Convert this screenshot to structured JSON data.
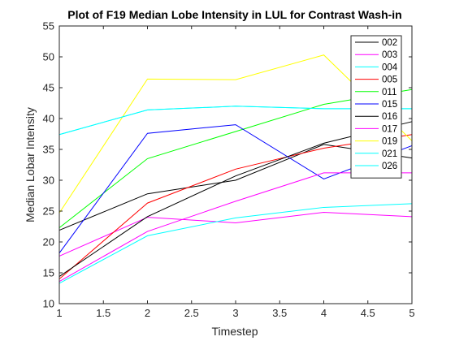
{
  "chart_data": {
    "type": "line",
    "title": "Plot of F19 Median Lobe Intensity in LUL for Contrast Wash-in",
    "xlabel": "Timestep",
    "ylabel": "Median Lobar Intensity",
    "xlim": [
      1,
      5
    ],
    "ylim": [
      10,
      55
    ],
    "xticks": [
      1,
      1.5,
      2,
      2.5,
      3,
      3.5,
      4,
      4.5,
      5
    ],
    "xtick_labels": [
      "1",
      "1.5",
      "2",
      "2.5",
      "3",
      "3.5",
      "4",
      "4.5",
      "5"
    ],
    "yticks": [
      10,
      15,
      20,
      25,
      30,
      35,
      40,
      45,
      50,
      55
    ],
    "ytick_labels": [
      "10",
      "15",
      "20",
      "25",
      "30",
      "35",
      "40",
      "45",
      "50",
      "55"
    ],
    "grid": false,
    "legend_position": "top-right",
    "x": [
      1,
      2,
      3,
      4,
      5
    ],
    "series": [
      {
        "name": "002",
        "color": "#000000",
        "values": [
          21.9,
          27.8,
          30.0,
          35.8,
          33.6
        ]
      },
      {
        "name": "003",
        "color": "#ff00ff",
        "values": [
          17.7,
          24.0,
          23.1,
          24.8,
          24.1
        ]
      },
      {
        "name": "004",
        "color": "#00ffff",
        "values": [
          13.3,
          21.0,
          23.9,
          25.6,
          26.2
        ]
      },
      {
        "name": "005",
        "color": "#ff0000",
        "values": [
          14.0,
          26.3,
          31.8,
          35.2,
          37.4
        ]
      },
      {
        "name": "011",
        "color": "#00ff00",
        "values": [
          22.3,
          33.5,
          37.9,
          42.3,
          44.7
        ]
      },
      {
        "name": "015",
        "color": "#0000ff",
        "values": [
          18.2,
          37.6,
          39.0,
          30.2,
          35.6
        ]
      },
      {
        "name": "016",
        "color": "#000000",
        "values": [
          14.4,
          24.1,
          30.7,
          36.0,
          39.5
        ]
      },
      {
        "name": "017",
        "color": "#ff00ff",
        "values": [
          13.6,
          21.7,
          26.6,
          31.2,
          31.2
        ]
      },
      {
        "name": "019",
        "color": "#ffff00",
        "values": [
          24.7,
          46.4,
          46.3,
          50.3,
          36.4
        ]
      },
      {
        "name": "021",
        "color": "#00ffff",
        "values": [
          37.4,
          41.4,
          42.0,
          41.6,
          41.6
        ]
      },
      {
        "name": "026",
        "color": "#00ffff",
        "values": [
          37.4,
          41.4,
          42.0,
          41.6,
          41.6
        ]
      }
    ]
  }
}
